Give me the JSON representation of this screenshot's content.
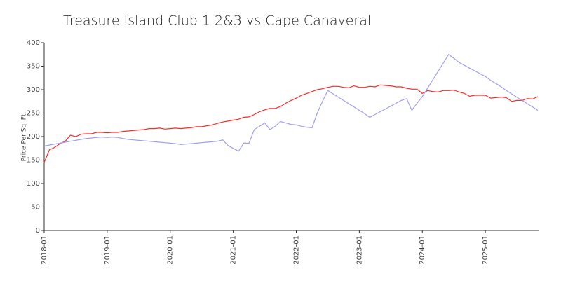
{
  "chart_data": {
    "type": "line",
    "title": "Treasure Island Club 1 2&3 vs Cape Canaveral",
    "ylabel": "Price Per Sq. Ft.",
    "x": [
      "2018-01",
      "2018-02",
      "2018-03",
      "2018-04",
      "2018-05",
      "2018-06",
      "2018-07",
      "2018-08",
      "2018-09",
      "2018-10",
      "2018-11",
      "2018-12",
      "2019-01",
      "2019-02",
      "2019-03",
      "2019-04",
      "2019-05",
      "2019-06",
      "2019-07",
      "2019-08",
      "2019-09",
      "2019-10",
      "2019-11",
      "2019-12",
      "2020-01",
      "2020-02",
      "2020-03",
      "2020-04",
      "2020-05",
      "2020-06",
      "2020-07",
      "2020-08",
      "2020-09",
      "2020-10",
      "2020-11",
      "2020-12",
      "2021-01",
      "2021-02",
      "2021-03",
      "2021-04",
      "2021-05",
      "2021-06",
      "2021-07",
      "2021-08",
      "2021-09",
      "2021-10",
      "2021-11",
      "2021-12",
      "2022-01",
      "2022-02",
      "2022-03",
      "2022-04",
      "2022-05",
      "2022-06",
      "2022-07",
      "2022-08",
      "2022-09",
      "2022-10",
      "2022-11",
      "2022-12",
      "2023-01",
      "2023-02",
      "2023-03",
      "2023-04",
      "2023-05",
      "2023-06",
      "2023-07",
      "2023-08",
      "2023-09",
      "2023-10",
      "2023-11",
      "2023-12",
      "2024-01",
      "2024-02",
      "2024-03",
      "2024-04",
      "2024-05",
      "2024-06",
      "2024-07",
      "2024-08",
      "2024-09",
      "2024-10",
      "2024-11",
      "2024-12",
      "2025-01",
      "2025-02",
      "2025-03",
      "2025-04",
      "2025-05",
      "2025-06",
      "2025-07",
      "2025-08",
      "2025-09",
      "2025-10",
      "2025-11"
    ],
    "series": [
      {
        "color": "#ff2a2a",
        "values": [
          145,
          172,
          177,
          185,
          190,
          203,
          200,
          205,
          206,
          206,
          209,
          209,
          208,
          209,
          209,
          211,
          212,
          213,
          214,
          215,
          217,
          217,
          218,
          216,
          217,
          218,
          217,
          218,
          219,
          221,
          221,
          223,
          225,
          228,
          231,
          233,
          235,
          237,
          241,
          242,
          247,
          253,
          257,
          260,
          260,
          264,
          271,
          277,
          282,
          288,
          292,
          296,
          300,
          302,
          305,
          307,
          307,
          305,
          304,
          308,
          305,
          305,
          307,
          306,
          310,
          309,
          308,
          306,
          306,
          303,
          301,
          301,
          292,
          298,
          296,
          295,
          298,
          298,
          299,
          295,
          292,
          286,
          288,
          288,
          288,
          282,
          283,
          284,
          283,
          275,
          277,
          277,
          281,
          280,
          285
        ]
      },
      {
        "color": "#a0a0f0",
        "values": [
          180,
          182,
          184,
          186,
          188,
          190,
          192,
          194,
          196,
          197,
          198,
          199,
          198,
          199,
          198,
          196,
          194,
          193,
          192,
          191,
          190,
          189,
          188,
          187,
          186,
          185,
          183,
          184,
          185,
          186,
          187,
          188,
          189,
          190,
          193,
          181,
          175,
          169,
          186,
          186,
          215,
          222,
          229,
          215,
          222,
          232,
          229,
          226,
          225,
          222,
          220,
          219,
          250,
          275,
          298,
          291,
          284,
          277,
          270,
          263,
          256,
          249,
          241,
          247,
          253,
          259,
          265,
          271,
          277,
          281,
          256,
          271,
          285,
          303,
          321,
          339,
          357,
          375,
          367,
          358,
          352,
          346,
          340,
          334,
          328,
          320,
          313,
          306,
          298,
          291,
          284,
          277,
          270,
          263,
          256
        ]
      }
    ],
    "xticks": [
      "2018-01",
      "2019-01",
      "2020-01",
      "2021-01",
      "2022-01",
      "2023-01",
      "2024-01",
      "2025-01"
    ],
    "ylim": [
      0,
      400
    ],
    "yticks": [
      0,
      50,
      100,
      150,
      200,
      250,
      300,
      350,
      400
    ],
    "grid": false
  }
}
